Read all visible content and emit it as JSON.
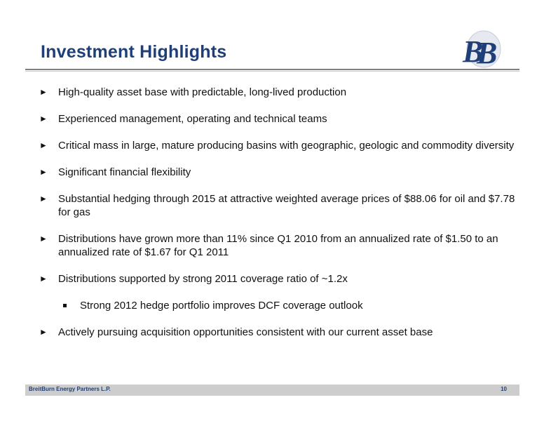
{
  "slide": {
    "title": "Investment Highlights",
    "logo_letters": "BB",
    "footer_company": "BreitBurn Energy Partners L.P.",
    "page_number": "10"
  },
  "bullets": [
    "High-quality asset base with predictable, long-lived production",
    "Experienced management, operating and technical teams",
    "Critical mass in large, mature producing basins with geographic, geologic and commodity diversity",
    "Significant financial flexibility",
    "Substantial hedging through 2015 at attractive weighted average prices of $88.06 for oil and $7.78 for gas",
    "Distributions have grown more than 11% since Q1 2010 from an annualized rate of $1.50 to an annualized rate of $1.67 for Q1 2011",
    "Distributions supported by strong 2011 coverage ratio of ~1.2x"
  ],
  "sub_bullet": "Strong 2012 hedge portfolio improves DCF coverage outlook",
  "last_bullet": "Actively pursuing acquisition opportunities consistent with our current asset base",
  "colors": {
    "title": "#1f3f78",
    "footer_bar": "#cdcdcd"
  }
}
